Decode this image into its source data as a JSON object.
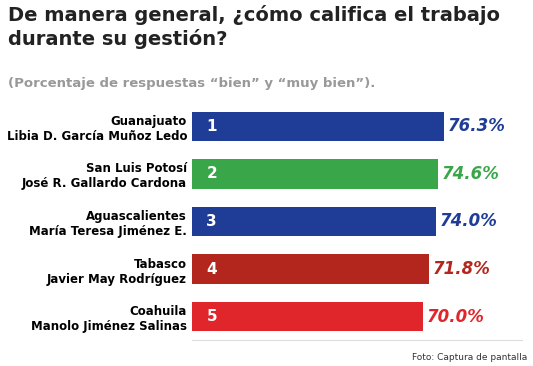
{
  "chart_data": {
    "type": "bar",
    "orientation": "horizontal",
    "title": "De manera general, ¿cómo califica el trabajo durante su gestión?",
    "subtitle": "(Porcentaje de respuestas “bien” y “muy bien”).",
    "categories": [
      "Guanajuato\nLibia D. García Muñoz Ledo",
      "San Luis Potosí\nJosé R. Gallardo Cardona",
      "Aguascalientes\nMaría Teresa Jiménez E.",
      "Tabasco\nJavier May Rodríguez",
      "Coahuila\nManolo Jiménez Salinas"
    ],
    "values": [
      76.3,
      74.6,
      74.0,
      71.8,
      70.0
    ],
    "value_labels": [
      "76.3%",
      "74.6%",
      "74.0%",
      "71.8%",
      "70.0%"
    ],
    "ranks": [
      1,
      2,
      3,
      4,
      5
    ],
    "colors": [
      "#1f3c96",
      "#3aa64a",
      "#1f3c96",
      "#b3261e",
      "#e0262b"
    ],
    "xlim": [
      0,
      100
    ],
    "data_labels": true,
    "tick_labels": "y",
    "grid": false,
    "caption": "Foto: Captura de pantalla"
  }
}
